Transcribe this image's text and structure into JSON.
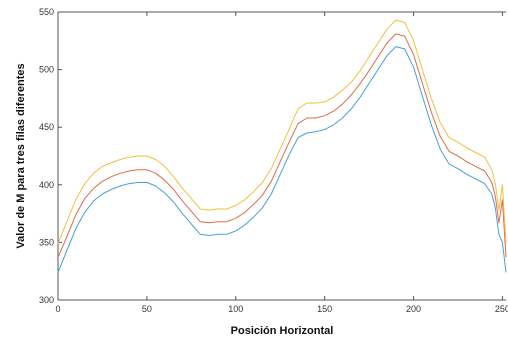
{
  "chart_data": {
    "type": "line",
    "xlabel": "Posición Horizontal",
    "ylabel": "Valor de M para tres filas diferentes",
    "xlim": [
      0,
      252
    ],
    "ylim": [
      300,
      550
    ],
    "xticks": [
      0,
      50,
      100,
      150,
      200,
      250
    ],
    "yticks": [
      300,
      350,
      400,
      450,
      500,
      550
    ],
    "grid": false,
    "x": [
      0,
      5,
      10,
      15,
      20,
      25,
      30,
      35,
      40,
      45,
      50,
      55,
      60,
      65,
      70,
      75,
      80,
      85,
      90,
      95,
      100,
      105,
      110,
      115,
      120,
      125,
      130,
      135,
      140,
      145,
      150,
      155,
      160,
      165,
      170,
      175,
      180,
      185,
      190,
      195,
      200,
      205,
      210,
      215,
      220,
      225,
      230,
      235,
      240,
      244,
      246,
      248,
      250,
      252
    ],
    "series": [
      {
        "color": "#4a9fd8",
        "values": [
          324,
          343,
          362,
          376,
          386,
          392,
          396,
          399,
          401,
          402,
          402,
          399,
          393,
          385,
          375,
          366,
          357,
          356,
          357,
          357,
          360,
          365,
          372,
          380,
          392,
          409,
          426,
          441,
          445,
          446,
          448,
          452,
          458,
          466,
          476,
          488,
          500,
          512,
          520,
          518,
          502,
          477,
          452,
          431,
          418,
          414,
          409,
          405,
          401,
          392,
          380,
          357,
          350,
          324
        ]
      },
      {
        "color": "#e06b4a",
        "values": [
          337,
          355,
          374,
          388,
          397,
          403,
          407,
          410,
          412,
          413,
          413,
          410,
          404,
          396,
          386,
          377,
          368,
          367,
          368,
          368,
          371,
          376,
          383,
          391,
          403,
          420,
          437,
          453,
          458,
          458,
          460,
          464,
          470,
          478,
          488,
          499,
          511,
          523,
          531,
          529,
          513,
          488,
          463,
          442,
          429,
          425,
          420,
          416,
          412,
          402,
          390,
          367,
          387,
          337
        ]
      },
      {
        "color": "#f0c040",
        "values": [
          349,
          368,
          387,
          401,
          410,
          416,
          419,
          422,
          424,
          425,
          425,
          422,
          416,
          407,
          397,
          388,
          379,
          378,
          379,
          379,
          382,
          387,
          394,
          402,
          414,
          431,
          448,
          466,
          471,
          471,
          472,
          476,
          482,
          489,
          499,
          511,
          523,
          535,
          543,
          541,
          525,
          500,
          475,
          454,
          441,
          437,
          432,
          428,
          424,
          413,
          401,
          378,
          400,
          349
        ]
      }
    ]
  }
}
